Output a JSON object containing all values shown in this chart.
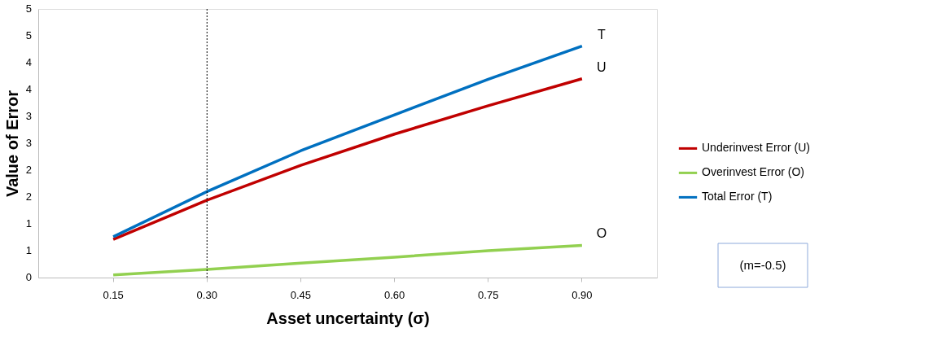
{
  "chart_data": {
    "type": "line",
    "xlabel": "Asset uncertainty (σ)",
    "ylabel": "Value of Error",
    "categories": [
      "0.15",
      "0.30",
      "0.45",
      "0.60",
      "0.75",
      "0.90"
    ],
    "series": [
      {
        "name": "Underinvest Error (U)",
        "color": "#c00000",
        "values": [
          0.71,
          1.44,
          2.09,
          2.67,
          3.2,
          3.7
        ]
      },
      {
        "name": "Overinvest Error (O)",
        "color": "#92d050",
        "values": [
          0.05,
          0.15,
          0.27,
          0.38,
          0.5,
          0.6
        ]
      },
      {
        "name": "Total Error (T)",
        "color": "#0070c0",
        "values": [
          0.76,
          1.6,
          2.36,
          3.03,
          3.69,
          4.31
        ]
      }
    ],
    "ylim": [
      0,
      5
    ],
    "yticks": [
      0,
      {
        "value": 0.5,
        "label": "1"
      },
      1,
      {
        "value": 1.5,
        "label": "2"
      },
      2,
      {
        "value": 2.5,
        "label": "3"
      },
      3,
      {
        "value": 3.5,
        "label": "4"
      },
      4,
      {
        "value": 4.5,
        "label": "5"
      },
      5
    ],
    "ref_lines": [
      {
        "axis": "x",
        "value": "0.30",
        "color": "#000000",
        "line_style": "dotted"
      }
    ],
    "annotations": [
      {
        "text": "T",
        "x": "0.90",
        "y": 4.31
      },
      {
        "text": "U",
        "x": "0.90",
        "y": 3.7
      },
      {
        "text": "O",
        "x": "0.90",
        "y": 0.6
      },
      "(m=-0.5)"
    ],
    "legend": "right",
    "grid": false,
    "marker": "none",
    "line_style": "solid"
  }
}
